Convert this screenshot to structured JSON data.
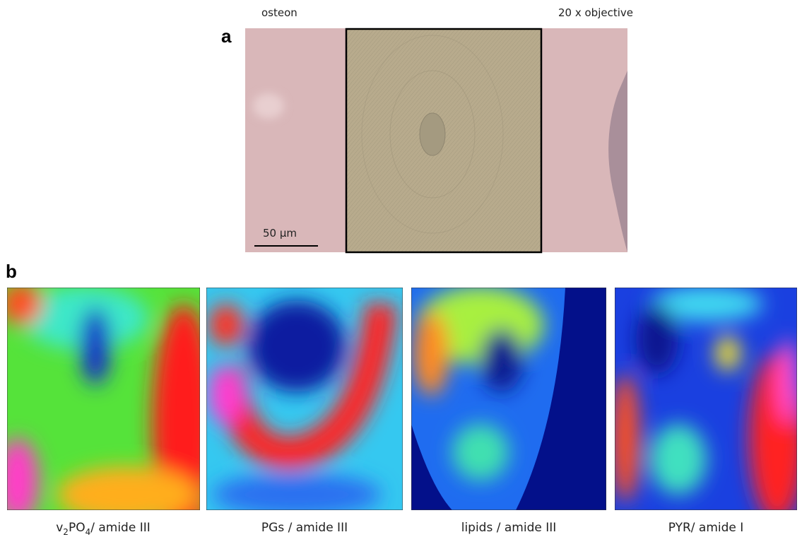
{
  "panel_a": {
    "label": "a",
    "left_label": "osteon",
    "right_label": "20 x objective",
    "scale_bar": "50 µm"
  },
  "panel_b": {
    "label": "b",
    "maps": [
      {
        "caption": [
          {
            "text": "v"
          },
          {
            "text": "2",
            "subscript": true
          },
          {
            "text": "PO"
          },
          {
            "text": "4",
            "subscript": true
          },
          {
            "text": "/ amide III"
          }
        ]
      },
      {
        "caption": [
          {
            "text": "PGs / amide III"
          }
        ]
      },
      {
        "caption": [
          {
            "text": "lipids / amide III"
          }
        ]
      },
      {
        "caption": [
          {
            "text": "PYR/ amide I"
          }
        ]
      }
    ]
  }
}
